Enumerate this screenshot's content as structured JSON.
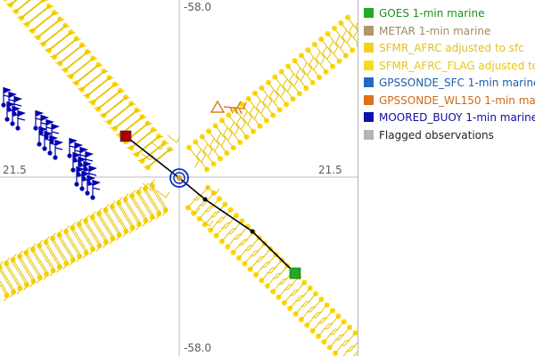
{
  "map": {
    "axis_labels": {
      "top": "-58.0",
      "bottom": "-58.0",
      "left": "21.5",
      "right": "21.5"
    },
    "colors": {
      "sfmr": "#ffd700",
      "sfmr_dark": "#e6c200",
      "moored_buoy": "#0000b3",
      "gpssonde_wl150": "#d98020",
      "goes": "#22aa22",
      "track": "#000000",
      "start_marker": "#aa0000",
      "center_marker": "#1030c0",
      "crosshair": "#b0b0b0"
    },
    "track_points": [
      {
        "label": "start",
        "color": "#aa0000"
      },
      {
        "label": "center",
        "color": "#1030c0"
      },
      {
        "label": "end",
        "color": "#22aa22"
      }
    ]
  },
  "legend": {
    "items": [
      {
        "label": "GOES 1-min marine",
        "color": "#22aa22",
        "text_color": "#1a8f1a"
      },
      {
        "label": "METAR 1-min marine",
        "color": "#b0986b",
        "text_color": "#a08a60"
      },
      {
        "label": "SFMR_AFRC adjusted to sfc",
        "color": "#f2d21a",
        "text_color": "#e0c020"
      },
      {
        "label": "SFMR_AFRC_FLAG adjusted to",
        "color": "#f7dc1e",
        "text_color": "#e6c810"
      },
      {
        "label": "GPSSONDE_SFC 1-min marine",
        "color": "#1e6cbe",
        "text_color": "#1a5fa8"
      },
      {
        "label": "GPSSONDE_WL150 1-min mar",
        "color": "#d9731c",
        "text_color": "#cc6a14"
      },
      {
        "label": "MOORED_BUOY 1-min marine",
        "color": "#1010b0",
        "text_color": "#0e0ea0"
      },
      {
        "label": "Flagged observations",
        "color": "#b4b4b4",
        "text_color": "#222222"
      }
    ]
  }
}
